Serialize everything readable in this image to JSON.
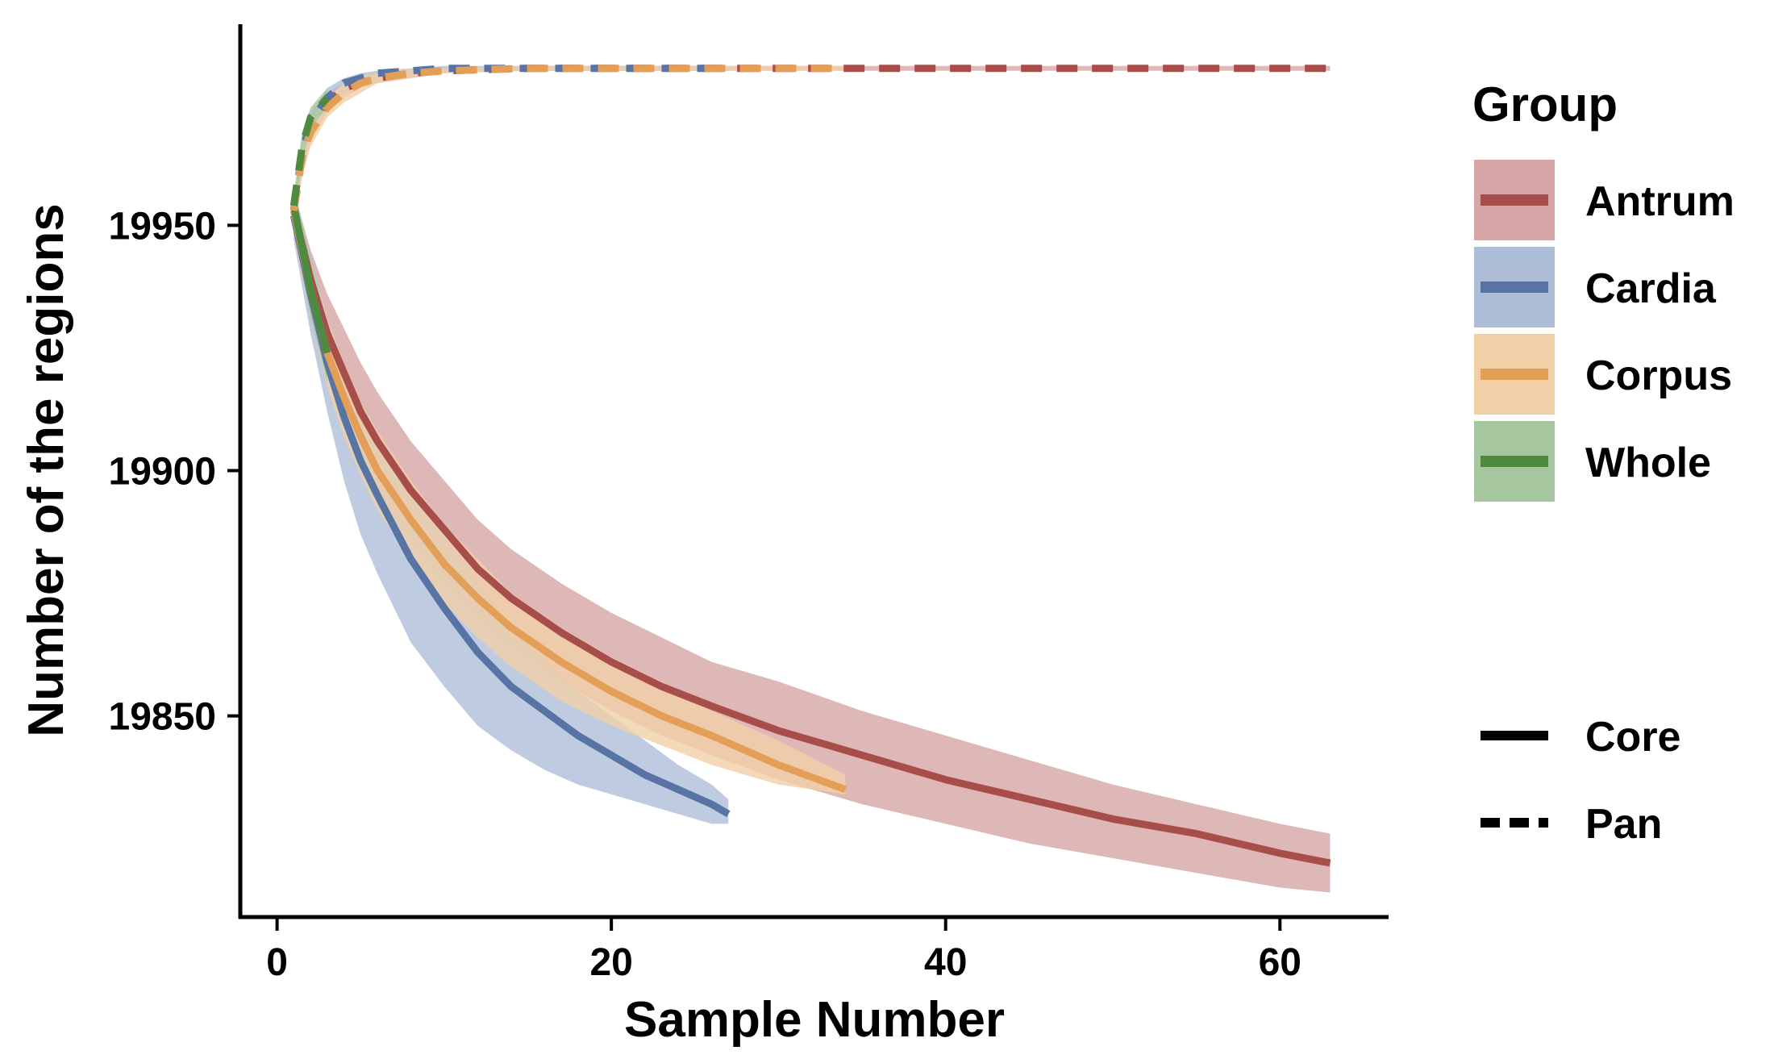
{
  "chart_data": {
    "type": "line",
    "xlabel": "Sample Number",
    "ylabel": "Number of the regions",
    "xlim": [
      -2.2,
      66.5
    ],
    "ylim": [
      19809,
      19991
    ],
    "xticks": [
      0,
      20,
      40,
      60
    ],
    "yticks": [
      19850,
      19900,
      19950
    ],
    "grid": false,
    "legend": {
      "placement": "right",
      "group_title": "Group",
      "groups": [
        {
          "name": "Antrum",
          "color": "#A84E4A",
          "band_color": "#D6A5A5"
        },
        {
          "name": "Cardia",
          "color": "#5874A4",
          "band_color": "#AEBED8"
        },
        {
          "name": "Corpus",
          "color": "#E39E58",
          "band_color": "#F1D0A8"
        },
        {
          "name": "Whole",
          "color": "#4E8A3F",
          "band_color": "#A7C7A0"
        }
      ],
      "types": [
        {
          "name": "Core",
          "dash": "solid"
        },
        {
          "name": "Pan",
          "dash": "dashed"
        }
      ]
    },
    "series": [
      {
        "group": "Antrum",
        "type": "Core",
        "x": [
          1,
          2,
          3,
          4,
          5,
          6,
          8,
          10,
          12,
          14,
          17,
          20,
          23,
          26,
          30,
          35,
          40,
          45,
          50,
          55,
          60,
          63
        ],
        "y": [
          19953,
          19939,
          19928,
          19920,
          19912,
          19906,
          19896,
          19888,
          19880,
          19874,
          19867,
          19861,
          19856,
          19852,
          19847,
          19842,
          19837,
          19833,
          19829,
          19826,
          19822,
          19820
        ],
        "lower": [
          19948,
          19932,
          19919,
          19910,
          19902,
          19896,
          19886,
          19877,
          19870,
          19864,
          19857,
          19851,
          19846,
          19842,
          19837,
          19832,
          19828,
          19824,
          19821,
          19818,
          19815,
          19814
        ],
        "upper": [
          19957,
          19945,
          19936,
          19929,
          19922,
          19916,
          19906,
          19898,
          19890,
          19884,
          19877,
          19871,
          19866,
          19861,
          19857,
          19851,
          19846,
          19841,
          19836,
          19832,
          19828,
          19826
        ]
      },
      {
        "group": "Cardia",
        "type": "Core",
        "x": [
          1,
          2,
          3,
          4,
          5,
          6,
          8,
          10,
          12,
          14,
          16,
          18,
          20,
          22,
          24,
          26,
          27
        ],
        "y": [
          19952,
          19936,
          19922,
          19911,
          19902,
          19895,
          19882,
          19872,
          19863,
          19856,
          19851,
          19846,
          19842,
          19838,
          19835,
          19832,
          19830
        ],
        "lower": [
          19947,
          19928,
          19912,
          19898,
          19887,
          19879,
          19865,
          19856,
          19848,
          19843,
          19839,
          19836,
          19834,
          19832,
          19830,
          19828,
          19828
        ],
        "upper": [
          19957,
          19944,
          19931,
          19922,
          19914,
          19908,
          19897,
          19887,
          19877,
          19868,
          19861,
          19855,
          19850,
          19845,
          19840,
          19836,
          19833
        ]
      },
      {
        "group": "Corpus",
        "type": "Core",
        "x": [
          1,
          2,
          3,
          4,
          5,
          6,
          8,
          10,
          12,
          14,
          17,
          20,
          23,
          26,
          30,
          34
        ],
        "y": [
          19953,
          19937,
          19924,
          19915,
          19907,
          19900,
          19890,
          19881,
          19874,
          19868,
          19861,
          19855,
          19850,
          19846,
          19840,
          19835
        ],
        "lower": [
          19948,
          19931,
          19917,
          19907,
          19899,
          19892,
          19882,
          19873,
          19866,
          19860,
          19853,
          19848,
          19844,
          19840,
          19836,
          19834
        ],
        "upper": [
          19957,
          19943,
          19931,
          19922,
          19914,
          19908,
          19898,
          19889,
          19882,
          19875,
          19868,
          19862,
          19857,
          19851,
          19845,
          19838
        ]
      },
      {
        "group": "Whole",
        "type": "Core",
        "x": [
          1,
          2,
          3
        ],
        "y": [
          19954,
          19937,
          19924
        ],
        "lower": [
          19949,
          19931,
          19918
        ],
        "upper": [
          19958,
          19943,
          19930
        ]
      },
      {
        "group": "Antrum",
        "type": "Pan",
        "x": [
          1,
          1.5,
          2,
          3,
          4,
          5,
          6,
          8,
          10,
          15,
          20,
          30,
          40,
          50,
          63
        ],
        "y": [
          19953,
          19964,
          19970,
          19975,
          19978,
          19979,
          19980,
          19981,
          19981.5,
          19982,
          19982,
          19982,
          19982,
          19982,
          19982
        ],
        "lower": [
          19950,
          19960,
          19967,
          19973,
          19976,
          19978,
          19979,
          19980,
          19981,
          19981.5,
          19981.5,
          19981.5,
          19981.5,
          19981.5,
          19981.5
        ],
        "upper": [
          19956,
          19967,
          19972,
          19977,
          19979,
          19980.5,
          19981,
          19981.5,
          19982,
          19982.5,
          19982.5,
          19982.5,
          19982.5,
          19982.5,
          19982.5
        ]
      },
      {
        "group": "Cardia",
        "type": "Pan",
        "x": [
          1,
          1.5,
          2,
          3,
          4,
          5,
          6,
          8,
          10,
          15,
          20,
          27
        ],
        "y": [
          19953,
          19965,
          19971,
          19976,
          19979,
          19980,
          19981,
          19981.5,
          19982,
          19982,
          19982,
          19982
        ],
        "lower": [
          19950,
          19961,
          19968,
          19974,
          19977,
          19979,
          19980,
          19981,
          19981.5,
          19981.5,
          19981.5,
          19981.5
        ],
        "upper": [
          19956,
          19968,
          19973,
          19978,
          19980,
          19981,
          19981.5,
          19982,
          19982.5,
          19982.5,
          19982.5,
          19982.5
        ]
      },
      {
        "group": "Corpus",
        "type": "Pan",
        "x": [
          1,
          1.5,
          2,
          3,
          4,
          5,
          6,
          8,
          10,
          15,
          20,
          34
        ],
        "y": [
          19953,
          19964,
          19969,
          19974,
          19977,
          19979,
          19980,
          19981,
          19981.5,
          19982,
          19982,
          19982
        ],
        "lower": [
          19950,
          19960,
          19966,
          19972,
          19975,
          19977,
          19979,
          19980,
          19981,
          19981.5,
          19981.5,
          19981.5
        ],
        "upper": [
          19956,
          19967,
          19972,
          19976,
          19979,
          19980.5,
          19981,
          19982,
          19982,
          19982.5,
          19982.5,
          19982.5
        ]
      },
      {
        "group": "Whole",
        "type": "Pan",
        "x": [
          1,
          1.5,
          2,
          3
        ],
        "y": [
          19954,
          19966,
          19972,
          19976
        ],
        "lower": [
          19952,
          19963,
          19970,
          19974
        ],
        "upper": [
          19956,
          19969,
          19974,
          19978
        ]
      }
    ]
  }
}
